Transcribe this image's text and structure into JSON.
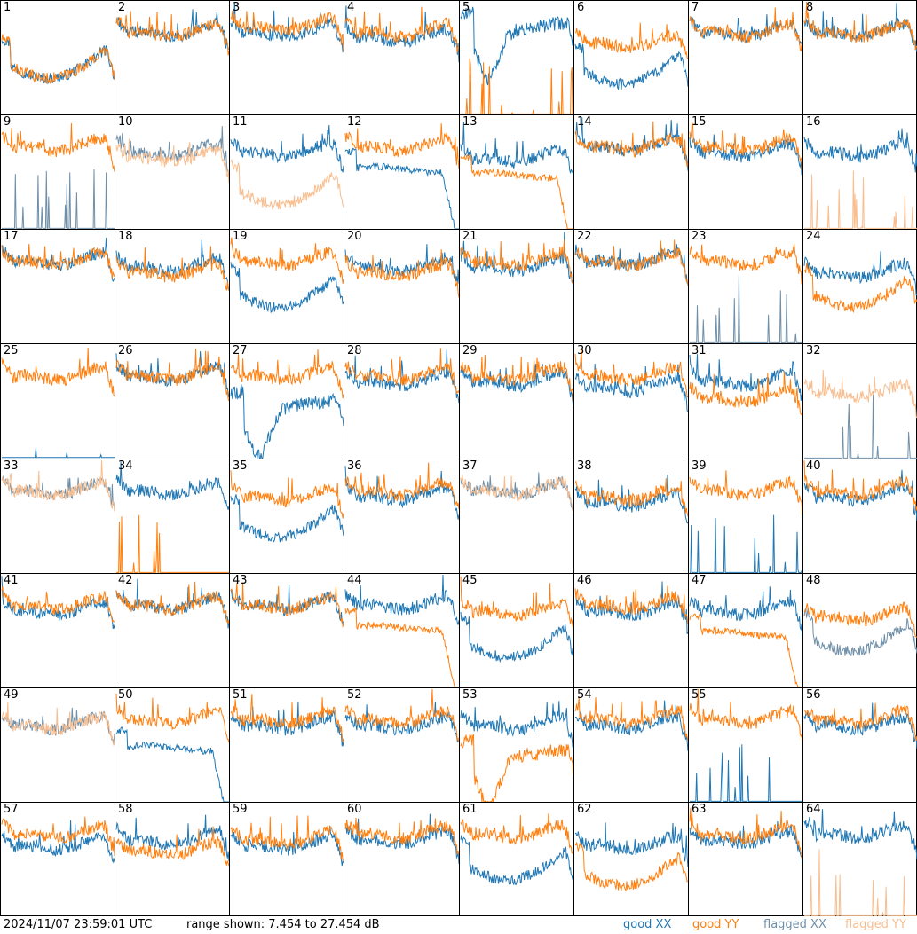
{
  "footer": {
    "timestamp": "2024/11/07 23:59:01 UTC",
    "range": "range shown: 7.454 to 27.454 dB",
    "legend": {
      "good_xx": "good XX",
      "good_yy": "good YY",
      "flagged_xx": "flagged XX",
      "flagged_yy": "flagged YY"
    }
  },
  "colors": {
    "good_xx": "#1f77b4",
    "good_yy": "#ff7f0e",
    "flagged_xx": "#6f8fa8",
    "flagged_yy": "#f8be8f"
  },
  "chart_data": {
    "type": "line",
    "grid": "8x8 small multiples",
    "ylim": [
      7.454,
      27.454
    ],
    "y_unit": "dB",
    "series_names": [
      "good XX",
      "good YY",
      "flagged XX",
      "flagged YY"
    ],
    "panels": [
      {
        "id": "1",
        "xx": {
          "s": "good",
          "m": 17,
          "p": "u"
        },
        "yy": {
          "s": "good",
          "m": 17,
          "p": "u"
        }
      },
      {
        "id": "2",
        "xx": {
          "s": "good",
          "m": 21,
          "p": "n"
        },
        "yy": {
          "s": "good",
          "m": 21,
          "p": "n"
        }
      },
      {
        "id": "3",
        "xx": {
          "s": "good",
          "m": 21,
          "p": "n"
        },
        "yy": {
          "s": "good",
          "m": 22,
          "p": "n"
        }
      },
      {
        "id": "4",
        "xx": {
          "s": "good",
          "m": 20,
          "p": "n"
        },
        "yy": {
          "s": "good",
          "m": 21,
          "p": "n"
        }
      },
      {
        "id": "5",
        "xx": {
          "s": "good",
          "m": 21,
          "p": "v"
        },
        "yy": {
          "s": "good",
          "m": 8,
          "p": "spk"
        }
      },
      {
        "id": "6",
        "xx": {
          "s": "good",
          "m": 16,
          "p": "u"
        },
        "yy": {
          "s": "good",
          "m": 19,
          "p": "n"
        }
      },
      {
        "id": "7",
        "xx": {
          "s": "good",
          "m": 21,
          "p": "n"
        },
        "yy": {
          "s": "good",
          "m": 21,
          "p": "n"
        }
      },
      {
        "id": "8",
        "xx": {
          "s": "good",
          "m": 21,
          "p": "n"
        },
        "yy": {
          "s": "good",
          "m": 21,
          "p": "n"
        }
      },
      {
        "id": "9",
        "xx": {
          "s": "flagged",
          "m": 8,
          "p": "spk"
        },
        "yy": {
          "s": "good",
          "m": 21,
          "p": "n"
        }
      },
      {
        "id": "10",
        "xx": {
          "s": "flagged",
          "m": 20,
          "p": "n"
        },
        "yy": {
          "s": "flagged",
          "m": 19,
          "p": "n"
        }
      },
      {
        "id": "11",
        "xx": {
          "s": "good",
          "m": 20,
          "p": "n"
        },
        "yy": {
          "s": "flagged",
          "m": 15,
          "p": "u"
        }
      },
      {
        "id": "12",
        "xx": {
          "s": "good",
          "m": 18,
          "p": "dr"
        },
        "yy": {
          "s": "good",
          "m": 21,
          "p": "n"
        }
      },
      {
        "id": "13",
        "xx": {
          "s": "good",
          "m": 19,
          "p": "n"
        },
        "yy": {
          "s": "good",
          "m": 17,
          "p": "dr"
        }
      },
      {
        "id": "14",
        "xx": {
          "s": "good",
          "m": 21,
          "p": "n"
        },
        "yy": {
          "s": "good",
          "m": 21,
          "p": "n"
        }
      },
      {
        "id": "15",
        "xx": {
          "s": "good",
          "m": 20,
          "p": "n"
        },
        "yy": {
          "s": "good",
          "m": 21,
          "p": "n"
        }
      },
      {
        "id": "16",
        "xx": {
          "s": "good",
          "m": 20,
          "p": "n"
        },
        "yy": {
          "s": "flagged",
          "m": 8,
          "p": "spk"
        }
      },
      {
        "id": "17",
        "xx": {
          "s": "good",
          "m": 21,
          "p": "n"
        },
        "yy": {
          "s": "good",
          "m": 21,
          "p": "n"
        }
      },
      {
        "id": "18",
        "xx": {
          "s": "good",
          "m": 20,
          "p": "n"
        },
        "yy": {
          "s": "good",
          "m": 19,
          "p": "n"
        }
      },
      {
        "id": "19",
        "xx": {
          "s": "good",
          "m": 17,
          "p": "u"
        },
        "yy": {
          "s": "good",
          "m": 21,
          "p": "n"
        }
      },
      {
        "id": "20",
        "xx": {
          "s": "good",
          "m": 20,
          "p": "n"
        },
        "yy": {
          "s": "good",
          "m": 19,
          "p": "n"
        }
      },
      {
        "id": "21",
        "xx": {
          "s": "good",
          "m": 20,
          "p": "n"
        },
        "yy": {
          "s": "good",
          "m": 21,
          "p": "n"
        }
      },
      {
        "id": "22",
        "xx": {
          "s": "good",
          "m": 21,
          "p": "n"
        },
        "yy": {
          "s": "good",
          "m": 21,
          "p": "n"
        }
      },
      {
        "id": "23",
        "xx": {
          "s": "flagged",
          "m": 8,
          "p": "spk"
        },
        "yy": {
          "s": "good",
          "m": 21,
          "p": "n"
        }
      },
      {
        "id": "24",
        "xx": {
          "s": "good",
          "m": 19,
          "p": "n"
        },
        "yy": {
          "s": "good",
          "m": 17,
          "p": "u"
        }
      },
      {
        "id": "25",
        "xx": {
          "s": "good",
          "m": 8,
          "p": "flat"
        },
        "yy": {
          "s": "good",
          "m": 21,
          "p": "n"
        }
      },
      {
        "id": "26",
        "xx": {
          "s": "good",
          "m": 21,
          "p": "n"
        },
        "yy": {
          "s": "good",
          "m": 21,
          "p": "n"
        }
      },
      {
        "id": "27",
        "xx": {
          "s": "good",
          "m": 15,
          "p": "v"
        },
        "yy": {
          "s": "good",
          "m": 21,
          "p": "n"
        }
      },
      {
        "id": "28",
        "xx": {
          "s": "good",
          "m": 20,
          "p": "n"
        },
        "yy": {
          "s": "good",
          "m": 21,
          "p": "n"
        }
      },
      {
        "id": "29",
        "xx": {
          "s": "good",
          "m": 20,
          "p": "n"
        },
        "yy": {
          "s": "good",
          "m": 21,
          "p": "n"
        }
      },
      {
        "id": "30",
        "xx": {
          "s": "good",
          "m": 19,
          "p": "n"
        },
        "yy": {
          "s": "good",
          "m": 21,
          "p": "n"
        }
      },
      {
        "id": "31",
        "xx": {
          "s": "good",
          "m": 20,
          "p": "n"
        },
        "yy": {
          "s": "good",
          "m": 17,
          "p": "n"
        }
      },
      {
        "id": "32",
        "xx": {
          "s": "flagged",
          "m": 8,
          "p": "spk"
        },
        "yy": {
          "s": "flagged",
          "m": 18,
          "p": "n"
        }
      },
      {
        "id": "33",
        "xx": {
          "s": "flagged",
          "m": 21,
          "p": "n"
        },
        "yy": {
          "s": "flagged",
          "m": 21,
          "p": "n"
        }
      },
      {
        "id": "34",
        "xx": {
          "s": "good",
          "m": 21,
          "p": "n"
        },
        "yy": {
          "s": "good",
          "m": 8,
          "p": "spk"
        }
      },
      {
        "id": "35",
        "xx": {
          "s": "good",
          "m": 17,
          "p": "u"
        },
        "yy": {
          "s": "good",
          "m": 20,
          "p": "n"
        }
      },
      {
        "id": "36",
        "xx": {
          "s": "good",
          "m": 20,
          "p": "n"
        },
        "yy": {
          "s": "good",
          "m": 21,
          "p": "n"
        }
      },
      {
        "id": "37",
        "xx": {
          "s": "flagged",
          "m": 21,
          "p": "n"
        },
        "yy": {
          "s": "flagged",
          "m": 21,
          "p": "n"
        }
      },
      {
        "id": "38",
        "xx": {
          "s": "good",
          "m": 19,
          "p": "n"
        },
        "yy": {
          "s": "good",
          "m": 20,
          "p": "n"
        }
      },
      {
        "id": "39",
        "xx": {
          "s": "good",
          "m": 8,
          "p": "spk"
        },
        "yy": {
          "s": "good",
          "m": 21,
          "p": "n"
        }
      },
      {
        "id": "40",
        "xx": {
          "s": "good",
          "m": 20,
          "p": "n"
        },
        "yy": {
          "s": "good",
          "m": 21,
          "p": "n"
        }
      },
      {
        "id": "41",
        "xx": {
          "s": "good",
          "m": 20,
          "p": "n"
        },
        "yy": {
          "s": "good",
          "m": 21,
          "p": "n"
        }
      },
      {
        "id": "42",
        "xx": {
          "s": "good",
          "m": 21,
          "p": "n"
        },
        "yy": {
          "s": "good",
          "m": 21,
          "p": "n"
        }
      },
      {
        "id": "43",
        "xx": {
          "s": "good",
          "m": 21,
          "p": "n"
        },
        "yy": {
          "s": "good",
          "m": 21,
          "p": "n"
        }
      },
      {
        "id": "44",
        "xx": {
          "s": "good",
          "m": 21,
          "p": "n"
        },
        "yy": {
          "s": "good",
          "m": 18,
          "p": "dr"
        }
      },
      {
        "id": "45",
        "xx": {
          "s": "good",
          "m": 16,
          "p": "u"
        },
        "yy": {
          "s": "good",
          "m": 20,
          "p": "n"
        }
      },
      {
        "id": "46",
        "xx": {
          "s": "good",
          "m": 20,
          "p": "n"
        },
        "yy": {
          "s": "good",
          "m": 21,
          "p": "n"
        }
      },
      {
        "id": "47",
        "xx": {
          "s": "good",
          "m": 20,
          "p": "n"
        },
        "yy": {
          "s": "good",
          "m": 17,
          "p": "dr"
        }
      },
      {
        "id": "48",
        "xx": {
          "s": "flagged",
          "m": 17,
          "p": "u"
        },
        "yy": {
          "s": "good",
          "m": 19,
          "p": "n"
        }
      },
      {
        "id": "49",
        "xx": {
          "s": "flagged",
          "m": 20,
          "p": "n"
        },
        "yy": {
          "s": "flagged",
          "m": 20,
          "p": "n"
        }
      },
      {
        "id": "50",
        "xx": {
          "s": "good",
          "m": 17,
          "p": "dr"
        },
        "yy": {
          "s": "good",
          "m": 21,
          "p": "n"
        }
      },
      {
        "id": "51",
        "xx": {
          "s": "good",
          "m": 20,
          "p": "n"
        },
        "yy": {
          "s": "good",
          "m": 21,
          "p": "n"
        }
      },
      {
        "id": "52",
        "xx": {
          "s": "good",
          "m": 20,
          "p": "n"
        },
        "yy": {
          "s": "good",
          "m": 21,
          "p": "n"
        }
      },
      {
        "id": "53",
        "xx": {
          "s": "good",
          "m": 20,
          "p": "n"
        },
        "yy": {
          "s": "good",
          "m": 14,
          "p": "v"
        }
      },
      {
        "id": "54",
        "xx": {
          "s": "good",
          "m": 20,
          "p": "n"
        },
        "yy": {
          "s": "good",
          "m": 21,
          "p": "n"
        }
      },
      {
        "id": "55",
        "xx": {
          "s": "good",
          "m": 8,
          "p": "spk"
        },
        "yy": {
          "s": "good",
          "m": 21,
          "p": "n"
        }
      },
      {
        "id": "56",
        "xx": {
          "s": "good",
          "m": 20,
          "p": "n"
        },
        "yy": {
          "s": "good",
          "m": 21,
          "p": "n"
        }
      },
      {
        "id": "57",
        "xx": {
          "s": "good",
          "m": 19,
          "p": "n"
        },
        "yy": {
          "s": "good",
          "m": 21,
          "p": "n"
        }
      },
      {
        "id": "58",
        "xx": {
          "s": "good",
          "m": 20,
          "p": "n"
        },
        "yy": {
          "s": "good",
          "m": 18,
          "p": "n"
        }
      },
      {
        "id": "59",
        "xx": {
          "s": "good",
          "m": 19,
          "p": "n"
        },
        "yy": {
          "s": "good",
          "m": 20,
          "p": "n"
        }
      },
      {
        "id": "60",
        "xx": {
          "s": "good",
          "m": 20,
          "p": "n"
        },
        "yy": {
          "s": "good",
          "m": 21,
          "p": "n"
        }
      },
      {
        "id": "61",
        "xx": {
          "s": "good",
          "m": 17,
          "p": "u"
        },
        "yy": {
          "s": "good",
          "m": 21,
          "p": "n"
        }
      },
      {
        "id": "62",
        "xx": {
          "s": "good",
          "m": 19,
          "p": "n"
        },
        "yy": {
          "s": "good",
          "m": 16,
          "p": "u"
        }
      },
      {
        "id": "63",
        "xx": {
          "s": "good",
          "m": 20,
          "p": "n"
        },
        "yy": {
          "s": "good",
          "m": 21,
          "p": "n"
        }
      },
      {
        "id": "64",
        "xx": {
          "s": "good",
          "m": 21,
          "p": "n"
        },
        "yy": {
          "s": "flagged",
          "m": 8,
          "p": "spk"
        }
      }
    ]
  }
}
